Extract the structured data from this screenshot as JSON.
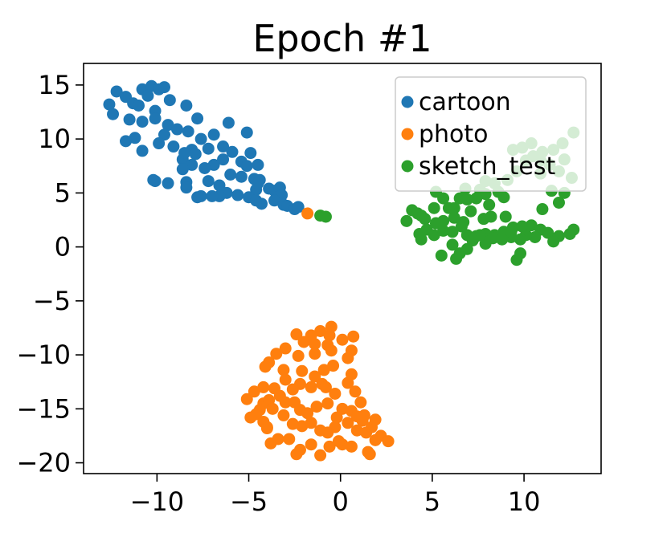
{
  "chart_data": {
    "type": "scatter",
    "title": "Epoch #1",
    "xlabel": "",
    "ylabel": "",
    "xlim": [
      -14,
      14.2
    ],
    "ylim": [
      -21,
      17
    ],
    "x_ticks": [
      -10,
      -5,
      0,
      5,
      10
    ],
    "x_tick_labels": [
      "−10",
      "−5",
      "0",
      "5",
      "10"
    ],
    "y_ticks": [
      15,
      10,
      5,
      0,
      -5,
      -10,
      -15,
      -20
    ],
    "y_tick_labels": [
      "15",
      "10",
      "5",
      "0",
      "−5",
      "−10",
      "−15",
      "−20"
    ],
    "grid": false,
    "legend_position": "top-right",
    "series": [
      {
        "name": "cartoon",
        "color": "#1f77b4",
        "points": [
          [
            -12.2,
            14.4
          ],
          [
            -11.7,
            13.9
          ],
          [
            -11.3,
            13.3
          ],
          [
            -10.8,
            14.6
          ],
          [
            -10.3,
            14.9
          ],
          [
            -9.9,
            14.6
          ],
          [
            -9.6,
            14.8
          ],
          [
            -10.5,
            14.0
          ],
          [
            -11.0,
            13.1
          ],
          [
            -10.1,
            12.6
          ],
          [
            -9.3,
            13.6
          ],
          [
            -12.6,
            13.2
          ],
          [
            -12.4,
            12.3
          ],
          [
            -11.5,
            11.8
          ],
          [
            -10.8,
            11.6
          ],
          [
            -10.1,
            11.9
          ],
          [
            -9.4,
            11.3
          ],
          [
            -8.4,
            13.1
          ],
          [
            -8.9,
            10.9
          ],
          [
            -9.6,
            10.4
          ],
          [
            -11.2,
            10.1
          ],
          [
            -11.7,
            9.8
          ],
          [
            -10.8,
            8.9
          ],
          [
            -9.9,
            9.6
          ],
          [
            -9.1,
            9.3
          ],
          [
            -8.1,
            9.0
          ],
          [
            -7.9,
            8.6
          ],
          [
            -8.6,
            8.1
          ],
          [
            -7.6,
            10.0
          ],
          [
            -8.3,
            10.7
          ],
          [
            -7.8,
            11.9
          ],
          [
            -6.9,
            10.4
          ],
          [
            -6.4,
            9.3
          ],
          [
            -7.2,
            9.1
          ],
          [
            -5.9,
            8.8
          ],
          [
            -6.1,
            11.5
          ],
          [
            -5.1,
            10.6
          ],
          [
            -4.9,
            8.7
          ],
          [
            -5.4,
            7.9
          ],
          [
            -6.4,
            8.1
          ],
          [
            -6.9,
            7.6
          ],
          [
            -7.4,
            7.3
          ],
          [
            -8.1,
            7.6
          ],
          [
            -8.6,
            7.2
          ],
          [
            -8.4,
            6.0
          ],
          [
            -8.4,
            5.5
          ],
          [
            -7.2,
            6.1
          ],
          [
            -6.6,
            5.7
          ],
          [
            -6.0,
            6.7
          ],
          [
            -5.4,
            6.5
          ],
          [
            -5.1,
            7.5
          ],
          [
            -4.7,
            6.3
          ],
          [
            -4.4,
            6.2
          ],
          [
            -4.6,
            5.3
          ],
          [
            -5.0,
            4.6
          ],
          [
            -5.6,
            4.8
          ],
          [
            -6.2,
            5.0
          ],
          [
            -6.6,
            4.7
          ],
          [
            -7.0,
            4.7
          ],
          [
            -7.6,
            4.7
          ],
          [
            -4.5,
            7.6
          ],
          [
            -4.5,
            5.9
          ],
          [
            -3.9,
            5.4
          ],
          [
            -3.6,
            5.2
          ],
          [
            -3.3,
            5.5
          ],
          [
            -3.2,
            4.8
          ],
          [
            -3.6,
            4.3
          ],
          [
            -4.3,
            4.0
          ],
          [
            -4.6,
            4.3
          ],
          [
            -3.1,
            3.9
          ],
          [
            -2.9,
            3.8
          ],
          [
            -2.5,
            3.5
          ],
          [
            -2.3,
            3.7
          ],
          [
            -7.8,
            4.6
          ],
          [
            -9.4,
            5.9
          ],
          [
            -10.1,
            6.1
          ],
          [
            -10.2,
            6.2
          ],
          [
            -8.5,
            8.7
          ]
        ]
      },
      {
        "name": "photo",
        "color": "#ff7f0e",
        "points": [
          [
            -1.8,
            3.1
          ],
          [
            -0.5,
            -7.4
          ],
          [
            -1.1,
            -7.8
          ],
          [
            -0.6,
            -8.2
          ],
          [
            -1.6,
            -8.2
          ],
          [
            -2.4,
            -8.1
          ],
          [
            -2.0,
            -8.8
          ],
          [
            -1.4,
            -9.0
          ],
          [
            -0.7,
            -9.1
          ],
          [
            0.7,
            -8.3
          ],
          [
            0.1,
            -8.6
          ],
          [
            -0.5,
            -9.6
          ],
          [
            -1.4,
            -9.9
          ],
          [
            -2.3,
            -10.1
          ],
          [
            -3.0,
            -9.4
          ],
          [
            -3.5,
            -9.9
          ],
          [
            -3.9,
            -10.7
          ],
          [
            -4.1,
            -11.1
          ],
          [
            -3.1,
            -11.4
          ],
          [
            -2.1,
            -11.5
          ],
          [
            -1.4,
            -12.0
          ],
          [
            -0.9,
            -11.4
          ],
          [
            0.6,
            -9.6
          ],
          [
            0.4,
            -10.3
          ],
          [
            -0.4,
            -11.0
          ],
          [
            -1.0,
            -12.7
          ],
          [
            -1.6,
            -13.0
          ],
          [
            -2.2,
            -12.7
          ],
          [
            -2.6,
            -13.2
          ],
          [
            -3.0,
            -12.3
          ],
          [
            -3.6,
            -13.1
          ],
          [
            -4.2,
            -13.0
          ],
          [
            -4.7,
            -13.4
          ],
          [
            -5.1,
            -14.1
          ],
          [
            -4.2,
            -14.5
          ],
          [
            -3.9,
            -14.2
          ],
          [
            -3.3,
            -13.8
          ],
          [
            -3.0,
            -14.4
          ],
          [
            -3.7,
            -15.0
          ],
          [
            -4.4,
            -15.1
          ],
          [
            -4.6,
            -15.5
          ],
          [
            -4.9,
            -15.8
          ],
          [
            -4.2,
            -16.2
          ],
          [
            -4.0,
            -16.7
          ],
          [
            -3.1,
            -15.6
          ],
          [
            -2.5,
            -14.4
          ],
          [
            -2.2,
            -15.1
          ],
          [
            -1.8,
            -15.4
          ],
          [
            -1.3,
            -14.8
          ],
          [
            -0.7,
            -14.5
          ],
          [
            -0.3,
            -13.6
          ],
          [
            -0.8,
            -13.0
          ],
          [
            0.4,
            -12.6
          ],
          [
            0.6,
            -11.8
          ],
          [
            0.8,
            -13.4
          ],
          [
            1.1,
            -14.4
          ],
          [
            0.6,
            -15.2
          ],
          [
            0.1,
            -15.0
          ],
          [
            -0.2,
            -15.8
          ],
          [
            0.4,
            -16.3
          ],
          [
            -0.3,
            -16.7
          ],
          [
            -0.7,
            -17.2
          ],
          [
            -1.1,
            -17.0
          ],
          [
            -1.6,
            -16.3
          ],
          [
            -2.1,
            -16.6
          ],
          [
            -2.6,
            -16.4
          ],
          [
            -3.4,
            -17.8
          ],
          [
            -3.8,
            -18.2
          ],
          [
            -4.0,
            -16.8
          ],
          [
            -2.4,
            -19.2
          ],
          [
            -2.2,
            -18.8
          ],
          [
            -1.6,
            -18.3
          ],
          [
            -1.1,
            -19.3
          ],
          [
            -0.6,
            -18.5
          ],
          [
            0.1,
            -18.3
          ],
          [
            0.6,
            -18.5
          ],
          [
            0.9,
            -17.0
          ],
          [
            1.4,
            -17.2
          ],
          [
            1.7,
            -16.7
          ],
          [
            1.9,
            -17.9
          ],
          [
            2.2,
            -17.5
          ],
          [
            2.6,
            -18.0
          ],
          [
            1.6,
            -19.2
          ],
          [
            1.5,
            -19.0
          ],
          [
            1.2,
            -16.1
          ],
          [
            1.9,
            -16.0
          ],
          [
            1.3,
            -15.6
          ],
          [
            0.9,
            -15.7
          ],
          [
            -0.1,
            -18.0
          ],
          [
            -2.8,
            -17.8
          ]
        ]
      },
      {
        "name": "sketch_test",
        "color": "#2ca02c",
        "points": [
          [
            -1.1,
            2.9
          ],
          [
            -0.8,
            2.8
          ],
          [
            3.6,
            2.4
          ],
          [
            4.4,
            2.9
          ],
          [
            3.9,
            3.4
          ],
          [
            5.1,
            3.6
          ],
          [
            4.2,
            3.1
          ],
          [
            4.6,
            2.6
          ],
          [
            5.9,
            3.6
          ],
          [
            6.2,
            3.6
          ],
          [
            6.5,
            4.5
          ],
          [
            5.6,
            4.5
          ],
          [
            5.2,
            5.1
          ],
          [
            6.8,
            5.4
          ],
          [
            7.6,
            5.3
          ],
          [
            7.9,
            6.1
          ],
          [
            8.4,
            5.9
          ],
          [
            9.1,
            6.2
          ],
          [
            9.6,
            7.0
          ],
          [
            10.1,
            8.0
          ],
          [
            10.5,
            8.4
          ],
          [
            11.0,
            8.8
          ],
          [
            11.6,
            9.0
          ],
          [
            12.1,
            9.6
          ],
          [
            12.7,
            10.6
          ],
          [
            12.2,
            8.1
          ],
          [
            11.4,
            7.6
          ],
          [
            10.9,
            6.8
          ],
          [
            12.6,
            6.4
          ],
          [
            11.9,
            7.0
          ],
          [
            9.4,
            9.0
          ],
          [
            9.9,
            9.2
          ],
          [
            10.4,
            9.6
          ],
          [
            10.9,
            8.0
          ],
          [
            11.5,
            5.2
          ],
          [
            8.9,
            4.6
          ],
          [
            8.6,
            5.1
          ],
          [
            7.9,
            4.9
          ],
          [
            7.4,
            4.5
          ],
          [
            6.9,
            4.4
          ],
          [
            7.1,
            3.3
          ],
          [
            6.7,
            2.3
          ],
          [
            6.2,
            2.7
          ],
          [
            5.6,
            2.4
          ],
          [
            5.2,
            2.2
          ],
          [
            4.7,
            1.6
          ],
          [
            4.3,
            1.2
          ],
          [
            4.4,
            0.7
          ],
          [
            5.1,
            1.1
          ],
          [
            5.6,
            1.5
          ],
          [
            6.1,
            1.4
          ],
          [
            6.6,
            1.9
          ],
          [
            6.9,
            1.1
          ],
          [
            7.4,
            1.0
          ],
          [
            7.9,
            1.2
          ],
          [
            8.4,
            1.1
          ],
          [
            8.9,
            1.4
          ],
          [
            9.4,
            1.8
          ],
          [
            9.9,
            1.9
          ],
          [
            10.4,
            2.0
          ],
          [
            10.9,
            1.6
          ],
          [
            11.3,
            1.3
          ],
          [
            11.9,
            1.0
          ],
          [
            12.5,
            1.2
          ],
          [
            12.7,
            1.6
          ],
          [
            11.6,
            0.5
          ],
          [
            10.6,
            0.9
          ],
          [
            10.1,
            1.1
          ],
          [
            9.8,
            0.7
          ],
          [
            9.3,
            0.9
          ],
          [
            8.8,
            0.7
          ],
          [
            8.3,
            0.8
          ],
          [
            7.9,
            0.3
          ],
          [
            7.6,
            1.1
          ],
          [
            7.2,
            0.6
          ],
          [
            6.9,
            -0.2
          ],
          [
            6.5,
            -0.6
          ],
          [
            6.3,
            -1.1
          ],
          [
            5.5,
            -0.8
          ],
          [
            6.1,
            0.2
          ],
          [
            9.6,
            -1.2
          ],
          [
            9.8,
            -0.6
          ],
          [
            9.3,
            1.4
          ],
          [
            7.8,
            2.6
          ],
          [
            8.2,
            2.8
          ],
          [
            9.0,
            2.8
          ],
          [
            11.0,
            3.5
          ],
          [
            11.9,
            4.1
          ],
          [
            12.2,
            5.0
          ],
          [
            8.1,
            3.9
          ]
        ]
      }
    ]
  }
}
